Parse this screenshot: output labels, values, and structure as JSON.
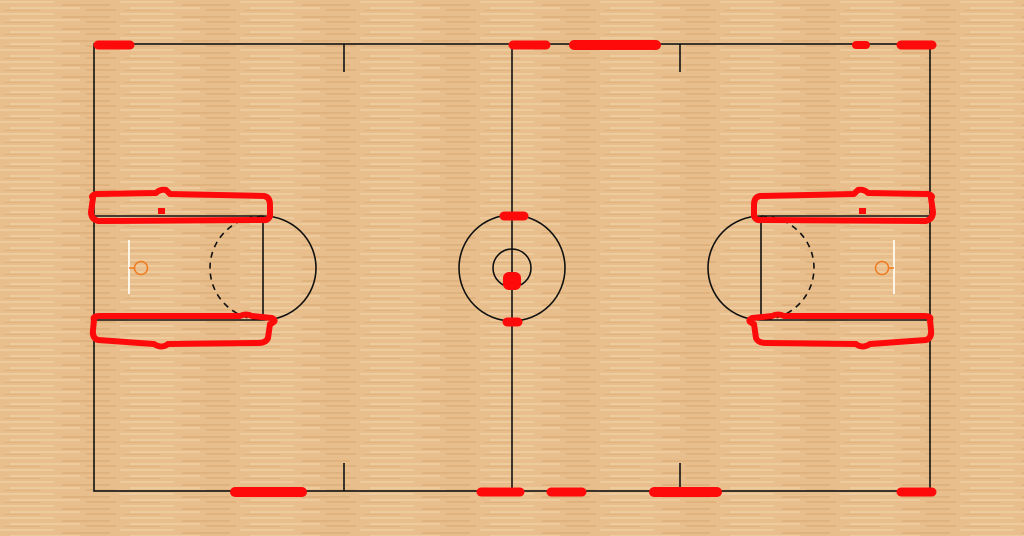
{
  "colors": {
    "floor_base": "#e8bf8c",
    "floor_plank_light": "#f0cfa2",
    "floor_plank_dark": "#d9a871",
    "court_lines": "#111111",
    "hoop": "#f07a1e",
    "backboard": "#fff6ea",
    "marker": "#ff0a0a"
  },
  "court": {
    "markers_note": ""
  }
}
